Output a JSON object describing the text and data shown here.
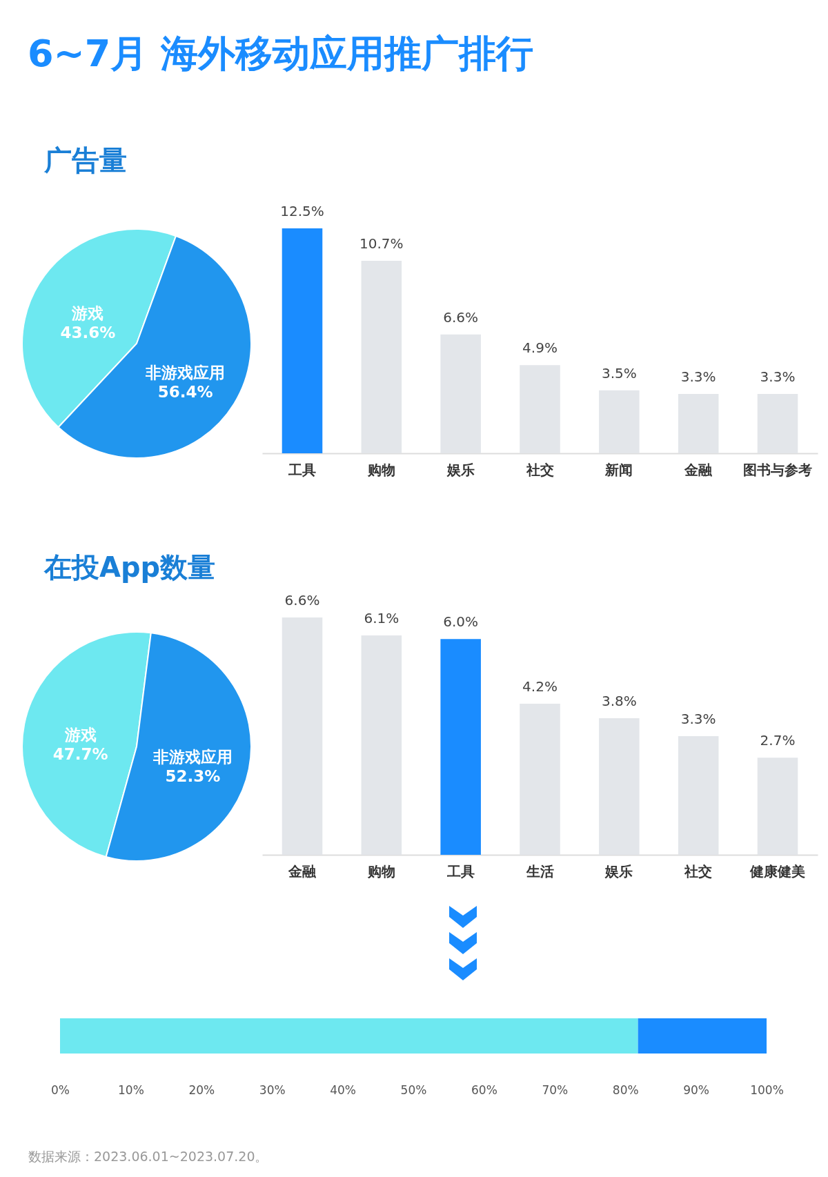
{
  "chart_data": [
    {
      "type": "pie",
      "title": "6~7月 海外移动应用推广排行",
      "subtitle": "广告量",
      "categories": [
        "游戏",
        "非游戏应用"
      ],
      "values": [
        43.6,
        56.4
      ],
      "colors": [
        "#6de8f0",
        "#2196ee"
      ],
      "value_labels": [
        "43.6%",
        "56.4%"
      ]
    },
    {
      "type": "bar",
      "categories": [
        "工具",
        "购物",
        "娱乐",
        "社交",
        "新闻",
        "金融",
        "图书与参考"
      ],
      "values": [
        12.5,
        10.7,
        6.6,
        4.9,
        3.5,
        3.3,
        3.3
      ],
      "colors": [
        "#1a8cff",
        "#e3e6ea",
        "#e3e6ea",
        "#e3e6ea",
        "#e3e6ea",
        "#e3e6ea",
        "#e3e6ea"
      ],
      "value_labels": [
        "12.5%",
        "10.7%",
        "6.6%",
        "4.9%",
        "3.5%",
        "3.3%",
        "3.3%"
      ]
    },
    {
      "type": "pie",
      "subtitle": "在投App数量",
      "categories": [
        "游戏",
        "非游戏应用"
      ],
      "values": [
        47.7,
        52.3
      ],
      "colors": [
        "#6de8f0",
        "#2196ee"
      ],
      "value_labels": [
        "47.7%",
        "52.3%"
      ]
    },
    {
      "type": "bar",
      "categories": [
        "金融",
        "购物",
        "工具",
        "生活",
        "娱乐",
        "社交",
        "健康健美"
      ],
      "values": [
        6.6,
        6.1,
        6.0,
        4.2,
        3.8,
        3.3,
        2.7
      ],
      "colors": [
        "#e3e6ea",
        "#e3e6ea",
        "#1a8cff",
        "#e3e6ea",
        "#e3e6ea",
        "#e3e6ea",
        "#e3e6ea"
      ],
      "value_labels": [
        "6.6%",
        "6.1%",
        "6.0%",
        "4.2%",
        "3.8%",
        "3.3%",
        "2.7%"
      ]
    },
    {
      "type": "bar",
      "orientation": "horizontal",
      "stacked": true,
      "categories": [
        null
      ],
      "series": [
        {
          "color": "#6de8f0",
          "values": [
            81.8
          ]
        },
        {
          "color": "#1a8cff",
          "values": [
            18.2
          ]
        }
      ],
      "xlim": [
        0,
        100
      ],
      "xticks": [
        {
          "value": 0,
          "label": "0%"
        },
        {
          "value": 10,
          "label": "10%"
        },
        {
          "value": 20,
          "label": "20%"
        },
        {
          "value": 30,
          "label": "30%"
        },
        {
          "value": 40,
          "label": "40%"
        },
        {
          "value": 50,
          "label": "50%"
        },
        {
          "value": 60,
          "label": "60%"
        },
        {
          "value": 70,
          "label": "70%"
        },
        {
          "value": 80,
          "label": "80%"
        },
        {
          "value": 90,
          "label": "90%"
        },
        {
          "value": 100,
          "label": "100%"
        }
      ],
      "annotations": [
        "数据来源：2023.06.01~2023.07.20。"
      ]
    }
  ]
}
